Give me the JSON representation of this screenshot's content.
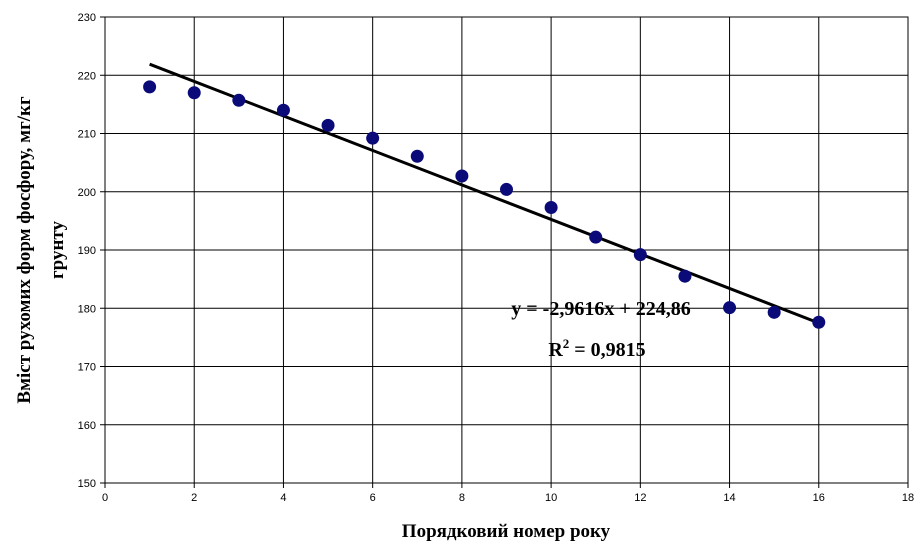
{
  "chart_data": {
    "type": "scatter",
    "title": "",
    "xlabel": "Порядковий номер року",
    "ylabel_line1": "Вміст рухомих форм фосфору, мг/кг",
    "ylabel_line2": "грунту",
    "xlim": [
      0,
      18
    ],
    "ylim": [
      150,
      230
    ],
    "x_ticks": [
      "0",
      "2",
      "4",
      "6",
      "8",
      "10",
      "12",
      "14",
      "16",
      "18"
    ],
    "y_ticks": [
      "150",
      "160",
      "170",
      "180",
      "190",
      "200",
      "210",
      "220",
      "230"
    ],
    "grid": true,
    "legend": "none",
    "marker_color": "#0a0a78",
    "trendline_color": "#000000",
    "series": [
      {
        "x": [
          1,
          2,
          3,
          4,
          5,
          6,
          7,
          8,
          9,
          10,
          11,
          12,
          13,
          14,
          15,
          16
        ],
        "y": [
          218,
          217,
          215.7,
          214,
          211.4,
          209.2,
          206.1,
          202.7,
          200.4,
          197.3,
          192.2,
          189.2,
          185.5,
          180.1,
          179.3,
          177.6
        ]
      }
    ],
    "trendline": {
      "slope": -2.9616,
      "intercept": 224.86,
      "x_range": [
        1,
        16
      ]
    },
    "annotations": {
      "equation": "y = -2,9616x + 224,86",
      "r2_prefix": "R",
      "r2_sup": "2",
      "r2_suffix": " = 0,9815"
    }
  }
}
